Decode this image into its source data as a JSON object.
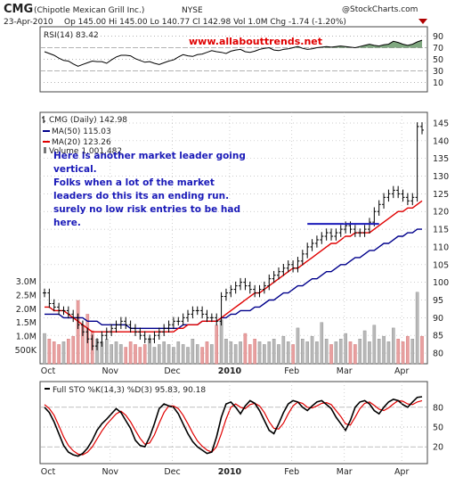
{
  "header": {
    "symbol": "CMG",
    "company": "(Chipotle Mexican Grill Inc.)",
    "exchange": "NYSE",
    "date": "23-Apr-2010",
    "quote": "Op 145.00  Hi 145.00  Lo 140.77  Cl 142.98  Vol 1.0M  Chg -1.74 (-1.20%)",
    "watermark": "@StockCharts.com",
    "change_arrow_icon": "down-triangle-icon"
  },
  "chart_data": [
    {
      "type": "line",
      "title": "RSI(14) 83.42",
      "ylim": [
        0,
        100
      ],
      "yticks": [
        "90",
        "70",
        "50",
        "30",
        "10"
      ],
      "bands": [
        30,
        70
      ],
      "series": [
        {
          "name": "RSI(14)",
          "color": "#000000",
          "values": [
            63,
            60,
            57,
            52,
            48,
            47,
            42,
            38,
            41,
            44,
            47,
            46,
            46,
            43,
            49,
            54,
            57,
            57,
            56,
            51,
            48,
            45,
            46,
            43,
            41,
            44,
            47,
            49,
            54,
            58,
            56,
            55,
            58,
            59,
            62,
            65,
            63,
            62,
            60,
            64,
            66,
            67,
            63,
            62,
            64,
            67,
            69,
            70,
            66,
            65,
            67,
            68,
            70,
            72,
            69,
            67,
            68,
            70,
            71,
            72,
            71,
            72,
            73,
            72,
            71,
            70,
            72,
            74,
            76,
            74,
            73,
            75,
            76,
            81,
            79,
            76,
            74,
            76,
            80,
            83
          ]
        }
      ]
    },
    {
      "type": "line",
      "title": "CMG (Daily) 142.98",
      "ylim": [
        78,
        146
      ],
      "yticks": [
        "145",
        "140",
        "135",
        "130",
        "125",
        "120",
        "115",
        "110",
        "105",
        "100",
        "95",
        "90",
        "85",
        "80"
      ],
      "xlabels": [
        "Oct",
        "Nov",
        "Dec",
        "2010",
        "Feb",
        "Mar",
        "Apr"
      ],
      "series": [
        {
          "name": "CMG (Daily)",
          "color": "#000000",
          "values": [
            97,
            94,
            93,
            92,
            92,
            91,
            90,
            88,
            86,
            84,
            82,
            83,
            85,
            86,
            87,
            88,
            89,
            88,
            87,
            86,
            85,
            84,
            84,
            85,
            86,
            87,
            88,
            89,
            89,
            90,
            91,
            92,
            92,
            91,
            90,
            90,
            89,
            96,
            97,
            98,
            99,
            100,
            99,
            98,
            97,
            98,
            99,
            101,
            102,
            103,
            104,
            105,
            104,
            106,
            108,
            110,
            111,
            112,
            113,
            114,
            113,
            114,
            115,
            116,
            115,
            114,
            114,
            115,
            117,
            120,
            122,
            124,
            125,
            126,
            125,
            124,
            123,
            124,
            144,
            143
          ]
        },
        {
          "name": "MA(50) 115.03",
          "color": "#00008b",
          "values": [
            91,
            91,
            91,
            91,
            90,
            90,
            90,
            90,
            90,
            89,
            89,
            89,
            88,
            88,
            88,
            88,
            88,
            88,
            87,
            87,
            87,
            87,
            87,
            87,
            87,
            87,
            87,
            87,
            87,
            88,
            88,
            88,
            88,
            89,
            89,
            89,
            89,
            90,
            90,
            91,
            91,
            92,
            92,
            92,
            93,
            93,
            94,
            95,
            95,
            96,
            97,
            97,
            98,
            99,
            99,
            100,
            101,
            101,
            102,
            103,
            103,
            104,
            105,
            105,
            106,
            107,
            107,
            108,
            109,
            109,
            110,
            111,
            111,
            112,
            113,
            113,
            114,
            114,
            115,
            115
          ]
        },
        {
          "name": "MA(20) 123.26",
          "color": "#e00000",
          "values": [
            93,
            93,
            92,
            92,
            92,
            91,
            90,
            89,
            88,
            87,
            86,
            86,
            86,
            86,
            86,
            86,
            86,
            86,
            86,
            86,
            86,
            86,
            86,
            86,
            86,
            86,
            86,
            86,
            87,
            87,
            88,
            88,
            88,
            89,
            89,
            89,
            89,
            90,
            91,
            92,
            93,
            94,
            95,
            96,
            97,
            97,
            98,
            99,
            100,
            101,
            102,
            103,
            104,
            104,
            105,
            106,
            107,
            108,
            109,
            110,
            111,
            111,
            112,
            113,
            113,
            114,
            114,
            114,
            114,
            115,
            116,
            117,
            118,
            119,
            120,
            120,
            121,
            121,
            122,
            123
          ]
        }
      ],
      "annotations": {
        "url": "www.allabouttrends.net",
        "note_lines": [
          "Here is another market leader going",
          "vertical.",
          "Folks when a lot of the market",
          "leaders do this its an ending run.",
          "surely no low risk entries to be had",
          "here."
        ],
        "resistance_line": 116.5
      }
    },
    {
      "type": "bar",
      "title": "Volume 1,001,482",
      "yticks": [
        "3.0M",
        "2.5M",
        "2.0M",
        "1.5M",
        "1.0M",
        "500K"
      ],
      "ylim": [
        0,
        3.5
      ],
      "values": [
        1.1,
        0.9,
        0.8,
        0.7,
        0.8,
        0.9,
        1.0,
        2.3,
        1.4,
        1.8,
        1.2,
        0.9,
        0.8,
        0.9,
        0.7,
        0.8,
        0.7,
        0.6,
        0.8,
        0.7,
        0.6,
        0.7,
        0.9,
        0.6,
        0.7,
        0.8,
        0.7,
        0.6,
        0.8,
        0.7,
        0.6,
        0.9,
        0.7,
        0.6,
        0.8,
        0.7,
        1.4,
        1.6,
        0.9,
        0.8,
        0.7,
        0.8,
        1.1,
        0.7,
        0.9,
        0.8,
        0.7,
        0.8,
        0.9,
        0.7,
        1.0,
        0.8,
        0.7,
        1.3,
        0.9,
        0.8,
        1.0,
        0.8,
        1.5,
        0.9,
        0.7,
        0.8,
        0.9,
        1.1,
        0.8,
        0.7,
        0.9,
        1.2,
        0.8,
        1.4,
        0.9,
        1.0,
        0.8,
        1.3,
        0.9,
        0.8,
        1.0,
        0.9,
        2.6,
        1.0
      ]
    },
    {
      "type": "line",
      "title": "Full STO %K(14,3) %D(3) 95.83, 90.18",
      "ylim": [
        0,
        100
      ],
      "yticks": [
        "80",
        "50",
        "20"
      ],
      "bands": [
        20,
        80
      ],
      "series": [
        {
          "name": "%K(14,3)",
          "color": "#000000",
          "values": [
            80,
            72,
            58,
            40,
            22,
            12,
            8,
            6,
            10,
            18,
            30,
            45,
            55,
            62,
            70,
            78,
            72,
            60,
            48,
            30,
            22,
            20,
            35,
            55,
            78,
            85,
            82,
            80,
            70,
            55,
            40,
            28,
            20,
            15,
            10,
            12,
            35,
            65,
            85,
            88,
            80,
            70,
            82,
            90,
            86,
            75,
            60,
            45,
            40,
            55,
            72,
            85,
            90,
            88,
            80,
            75,
            82,
            88,
            90,
            84,
            78,
            65,
            55,
            45,
            60,
            80,
            88,
            90,
            85,
            75,
            70,
            80,
            88,
            92,
            90,
            84,
            80,
            88,
            95,
            96
          ]
        },
        {
          "name": "%D(3)",
          "color": "#e00000",
          "values": [
            84,
            78,
            68,
            52,
            35,
            22,
            14,
            9,
            8,
            12,
            20,
            32,
            44,
            54,
            62,
            70,
            74,
            68,
            58,
            45,
            33,
            24,
            26,
            38,
            56,
            72,
            82,
            82,
            78,
            68,
            55,
            41,
            29,
            21,
            15,
            12,
            20,
            40,
            62,
            80,
            85,
            80,
            78,
            84,
            86,
            82,
            72,
            58,
            48,
            47,
            56,
            70,
            82,
            88,
            86,
            80,
            79,
            82,
            86,
            87,
            84,
            75,
            66,
            55,
            53,
            65,
            78,
            86,
            88,
            83,
            77,
            75,
            79,
            85,
            90,
            89,
            85,
            84,
            88,
            90
          ]
        }
      ]
    }
  ],
  "price_label": "142.98"
}
